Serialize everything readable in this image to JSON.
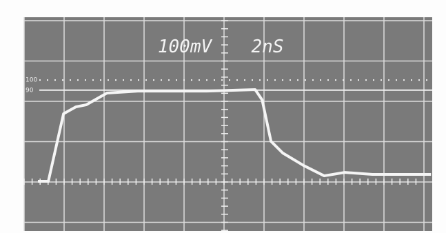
{
  "chart_data": {
    "type": "line",
    "volts_per_div": "100mV",
    "time_per_div": "2nS",
    "x": [
      0.69,
      1.21,
      1.97,
      2.59,
      3.1,
      4.14,
      5.69,
      9.14,
      11.55,
      11.9,
      12.34,
      12.93,
      13.97,
      15.0,
      16.03,
      17.41,
      20.34
    ],
    "values": [
      0,
      0,
      66.7,
      73.5,
      75.5,
      87.1,
      89.1,
      89.1,
      90.5,
      80.3,
      39.5,
      27.9,
      15.6,
      5.4,
      8.8,
      6.8,
      6.8
    ],
    "color": "#f5f5f5",
    "xlim": [
      0,
      20.4
    ],
    "ylim": [
      -49,
      162
    ],
    "yticks": [
      100,
      90
    ]
  }
}
